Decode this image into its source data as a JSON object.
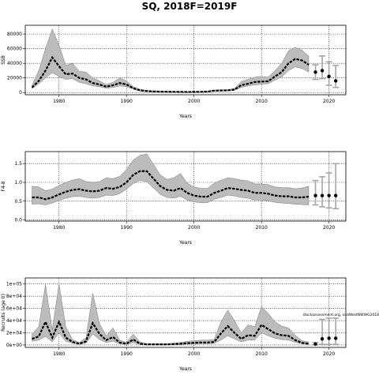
{
  "title": "SQ, 2018F=2019F",
  "chart_data": [
    {
      "type": "line",
      "ylabel": "SSB",
      "xlabel": "Years",
      "xlim": [
        1975,
        2022.5
      ],
      "ylim": [
        -3000,
        92000
      ],
      "xticks": [
        1980,
        1990,
        2000,
        2010,
        2020
      ],
      "yticks": [
        0,
        20000,
        40000,
        60000,
        80000
      ],
      "ytick_labels": [
        "0",
        "20000",
        "40000",
        "60000",
        "80000"
      ],
      "grid": "dotted",
      "x": [
        1976,
        1977,
        1978,
        1979,
        1980,
        1981,
        1982,
        1983,
        1984,
        1985,
        1986,
        1987,
        1988,
        1989,
        1990,
        1991,
        1992,
        1993,
        1994,
        1995,
        1996,
        1997,
        1998,
        1999,
        2000,
        2001,
        2002,
        2003,
        2004,
        2005,
        2006,
        2007,
        2008,
        2009,
        2010,
        2011,
        2012,
        2013,
        2014,
        2015,
        2016,
        2017
      ],
      "median": [
        7000,
        16000,
        30000,
        48000,
        36000,
        25000,
        26000,
        20000,
        18000,
        13000,
        11000,
        8000,
        10000,
        13000,
        11000,
        6000,
        3000,
        2000,
        1500,
        1300,
        1100,
        1000,
        900,
        800,
        900,
        1000,
        1300,
        2500,
        2800,
        3000,
        4000,
        10000,
        12000,
        14500,
        15000,
        15500,
        22000,
        28000,
        40000,
        46000,
        44000,
        38000
      ],
      "lower": [
        5500,
        12000,
        20000,
        27000,
        22000,
        18000,
        19000,
        14000,
        12000,
        9000,
        8000,
        6000,
        7000,
        9000,
        8000,
        4500,
        2000,
        1400,
        1000,
        900,
        800,
        700,
        600,
        500,
        600,
        700,
        1000,
        2000,
        2200,
        2400,
        3200,
        7000,
        9000,
        10500,
        11500,
        12000,
        17000,
        21000,
        30000,
        35000,
        33000,
        28000
      ],
      "upper": [
        10000,
        30000,
        60000,
        87000,
        65000,
        37000,
        40000,
        29000,
        28000,
        20000,
        16000,
        11000,
        14000,
        20000,
        16000,
        8000,
        4500,
        3000,
        2200,
        1900,
        1600,
        1400,
        1300,
        1200,
        1300,
        1400,
        1800,
        3500,
        3800,
        4000,
        5500,
        15000,
        18000,
        21000,
        22000,
        21000,
        30000,
        40000,
        57000,
        62000,
        58000,
        50000
      ],
      "projection": [
        {
          "x": 2018,
          "median": 28000,
          "lower": 18000,
          "upper": 38000
        },
        {
          "x": 2019,
          "median": 30000,
          "lower": 19000,
          "upper": 50000
        },
        {
          "x": 2020,
          "median": 22000,
          "lower": 10000,
          "upper": 42000
        },
        {
          "x": 2021,
          "median": 16000,
          "lower": 7000,
          "upper": 37000
        }
      ]
    },
    {
      "type": "line",
      "ylabel": "F4-8",
      "xlabel": "Years",
      "xlim": [
        1975,
        2022.5
      ],
      "ylim": [
        -0.03,
        1.82
      ],
      "xticks": [
        1980,
        1990,
        2000,
        2010,
        2020
      ],
      "yticks": [
        0,
        0.5,
        1.0,
        1.5
      ],
      "ytick_labels": [
        "0.0",
        "0.5",
        "1.0",
        "1.5"
      ],
      "grid": "dotted",
      "x": [
        1976,
        1977,
        1978,
        1979,
        1980,
        1981,
        1982,
        1983,
        1984,
        1985,
        1986,
        1987,
        1988,
        1989,
        1990,
        1991,
        1992,
        1993,
        1994,
        1995,
        1996,
        1997,
        1998,
        1999,
        2000,
        2001,
        2002,
        2003,
        2004,
        2005,
        2006,
        2007,
        2008,
        2009,
        2010,
        2011,
        2012,
        2013,
        2014,
        2015,
        2016,
        2017
      ],
      "median": [
        0.6,
        0.6,
        0.55,
        0.6,
        0.68,
        0.75,
        0.8,
        0.82,
        0.78,
        0.76,
        0.78,
        0.85,
        0.83,
        0.88,
        1.0,
        1.2,
        1.3,
        1.3,
        1.1,
        0.9,
        0.8,
        0.78,
        0.85,
        0.72,
        0.65,
        0.62,
        0.62,
        0.72,
        0.78,
        0.85,
        0.83,
        0.8,
        0.78,
        0.72,
        0.72,
        0.7,
        0.65,
        0.63,
        0.63,
        0.6,
        0.6,
        0.62
      ],
      "lower": [
        0.42,
        0.43,
        0.4,
        0.45,
        0.52,
        0.58,
        0.62,
        0.63,
        0.6,
        0.58,
        0.6,
        0.66,
        0.65,
        0.7,
        0.82,
        0.97,
        1.05,
        1.02,
        0.85,
        0.68,
        0.6,
        0.58,
        0.63,
        0.53,
        0.48,
        0.46,
        0.46,
        0.55,
        0.6,
        0.66,
        0.64,
        0.6,
        0.58,
        0.53,
        0.53,
        0.51,
        0.47,
        0.45,
        0.44,
        0.42,
        0.41,
        0.4
      ],
      "upper": [
        0.9,
        0.88,
        0.78,
        0.82,
        0.92,
        1.0,
        1.06,
        1.1,
        1.02,
        1.0,
        1.02,
        1.12,
        1.1,
        1.16,
        1.34,
        1.6,
        1.72,
        1.76,
        1.48,
        1.2,
        1.08,
        1.12,
        1.24,
        0.98,
        0.88,
        0.84,
        0.84,
        0.98,
        1.06,
        1.12,
        1.1,
        1.06,
        1.04,
        0.96,
        0.96,
        0.94,
        0.88,
        0.86,
        0.86,
        0.83,
        0.85,
        0.9
      ],
      "projection": [
        {
          "x": 2018,
          "median": 0.65,
          "lower": 0.4,
          "upper": 1.05
        },
        {
          "x": 2019,
          "median": 0.65,
          "lower": 0.35,
          "upper": 1.15
        },
        {
          "x": 2020,
          "median": 0.65,
          "lower": 0.32,
          "upper": 1.25
        },
        {
          "x": 2021,
          "median": 0.65,
          "lower": 0.3,
          "upper": 1.5
        }
      ]
    },
    {
      "type": "line",
      "ylabel": "Recruits (age 0)",
      "xlabel": "Years",
      "xlim": [
        1975,
        2022.5
      ],
      "ylim": [
        -4000,
        110000
      ],
      "xticks": [
        1980,
        1990,
        2000,
        2010,
        2020
      ],
      "yticks": [
        0,
        20000,
        40000,
        60000,
        80000,
        100000
      ],
      "ytick_labels": [
        "0e+00",
        "2e+04",
        "4e+04",
        "6e+04",
        "8e+04",
        "1e+05"
      ],
      "grid": "dotted",
      "annotation": "stockassessment.org, codWestNWWG2018",
      "x": [
        1976,
        1977,
        1978,
        1979,
        1980,
        1981,
        1982,
        1983,
        1984,
        1985,
        1986,
        1987,
        1988,
        1989,
        1990,
        1991,
        1992,
        1993,
        1994,
        1995,
        1996,
        1997,
        1998,
        1999,
        2000,
        2001,
        2002,
        2003,
        2004,
        2005,
        2006,
        2007,
        2008,
        2009,
        2010,
        2011,
        2012,
        2013,
        2014,
        2015,
        2016,
        2017
      ],
      "median": [
        10000,
        14000,
        38000,
        12000,
        38000,
        12000,
        5000,
        2000,
        6000,
        36000,
        18000,
        8000,
        13000,
        4000,
        2000,
        9000,
        2000,
        1000,
        1000,
        1000,
        1000,
        1500,
        2000,
        3000,
        3500,
        4000,
        4000,
        5000,
        19000,
        31000,
        20000,
        10000,
        16000,
        15000,
        33000,
        26000,
        19000,
        16000,
        15000,
        8000,
        3500,
        2000
      ],
      "lower": [
        6000,
        8000,
        14000,
        5000,
        20000,
        6000,
        3000,
        1000,
        3000,
        18000,
        9000,
        4000,
        6000,
        2000,
        1000,
        4000,
        800,
        400,
        400,
        400,
        400,
        600,
        900,
        1300,
        1600,
        2000,
        2000,
        2500,
        8000,
        15000,
        10000,
        5000,
        8000,
        8000,
        20000,
        15000,
        11000,
        9000,
        8000,
        4500,
        1800,
        800
      ],
      "upper": [
        18000,
        30000,
        99000,
        25000,
        100000,
        30000,
        9000,
        4000,
        12000,
        85000,
        35000,
        15000,
        28000,
        8000,
        4000,
        18000,
        5000,
        2000,
        2000,
        2000,
        2000,
        3000,
        4000,
        6000,
        7000,
        8000,
        8000,
        9000,
        38000,
        57000,
        40000,
        20000,
        33000,
        30000,
        63000,
        52000,
        38000,
        31000,
        28000,
        16000,
        7000,
        5000
      ],
      "projection": [
        {
          "x": 2018,
          "median": 1500,
          "lower": 300,
          "upper": 4000
        },
        {
          "x": 2019,
          "median": 10000,
          "lower": 1000,
          "upper": 42000
        },
        {
          "x": 2020,
          "median": 11000,
          "lower": 1000,
          "upper": 44000
        },
        {
          "x": 2021,
          "median": 11000,
          "lower": 1000,
          "upper": 44000
        }
      ]
    }
  ]
}
